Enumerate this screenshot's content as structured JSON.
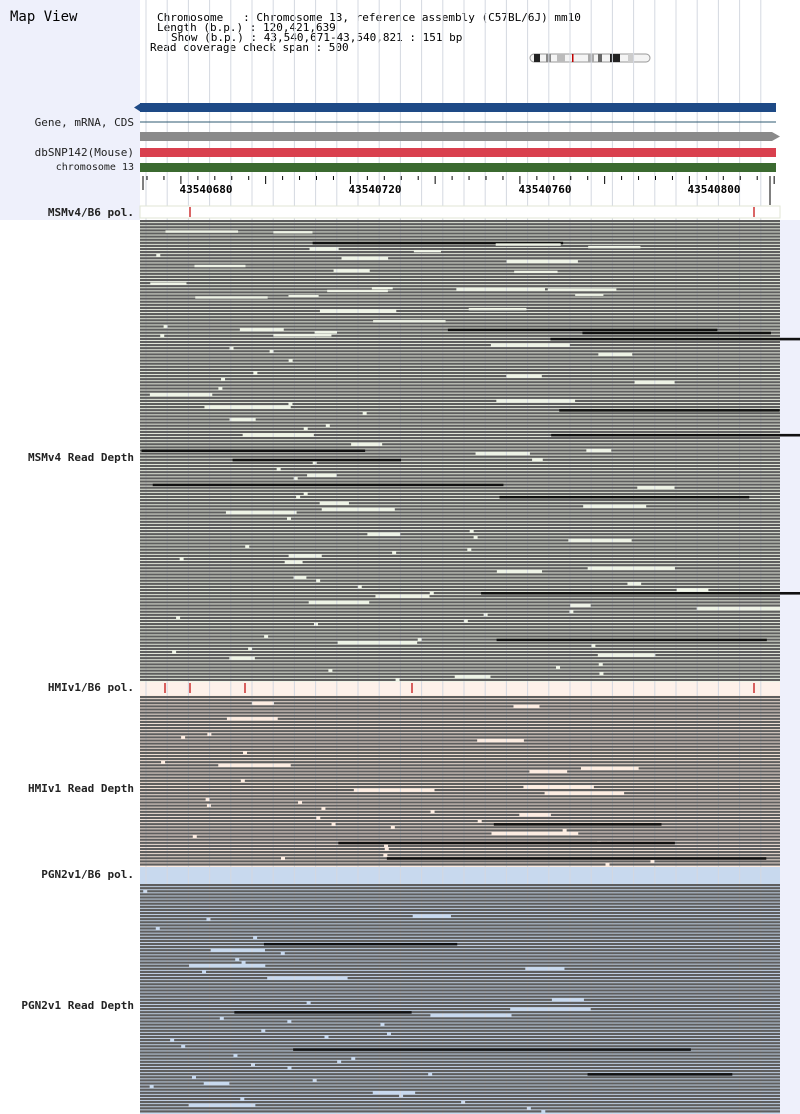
{
  "title": "Map View",
  "info": {
    "chromosome": "Chromosome   : Chromosome 13, reference assembly (C57BL/6J) mm10",
    "length": "Length (b.p.) : 120,421,639",
    "show": "Show (b.p.) : 43,540,671-43,540,821 : 151 bp",
    "coverage": "Read coverage check span : 500"
  },
  "track_labels": {
    "gene": "Gene, mRNA, CDS",
    "dbsnp": "dbSNP142(Mouse)",
    "chromosome": "chromosome 13",
    "msm_pol": "MSMv4/B6 pol.",
    "msm_depth": "MSMv4 Read Depth",
    "hmi_pol": "HMIv1/B6 pol.",
    "hmi_depth": "HMIv1 Read Depth",
    "pgn_pol": "PGN2v1/B6 pol.",
    "pgn_depth": "PGN2v1 Read Depth"
  },
  "ruler": {
    "ticks": [
      "43540680",
      "43540720",
      "43540760",
      "43540800"
    ]
  },
  "colors": {
    "gene_bar": "#1e4a86",
    "dbsnp_bar": "#d9404e",
    "chromosome_bar": "#3b6a30",
    "read": "#5e5e5e",
    "msm_bg": "#eef3e6",
    "hmi_bg": "#fcece1",
    "pgn_bg": "#c8d9ee",
    "snp_mark": "#c00000"
  }
}
